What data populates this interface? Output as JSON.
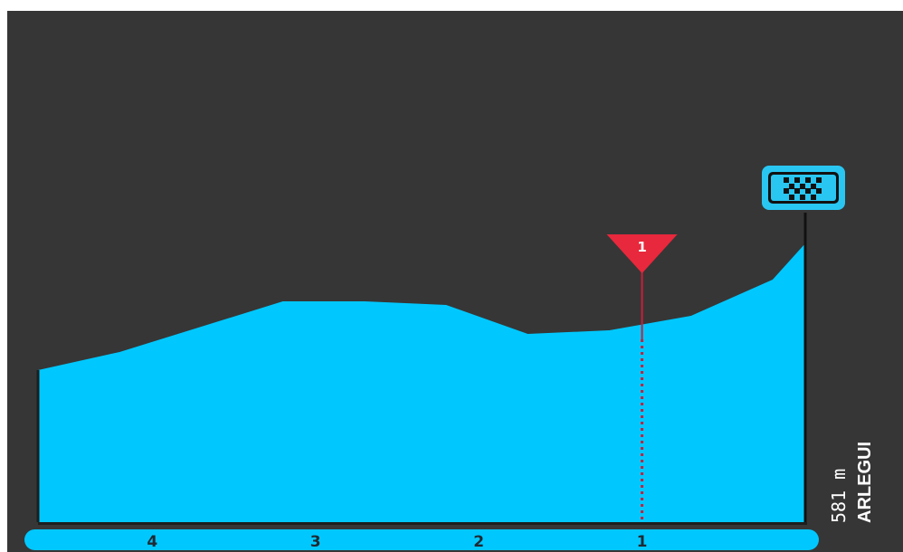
{
  "chart_data": {
    "type": "area",
    "x": [
      4.7,
      4.2,
      3.7,
      3.2,
      2.7,
      2.2,
      1.7,
      1.2,
      0.7,
      0.2,
      0
    ],
    "y": [
      542,
      547,
      554,
      561,
      561,
      560,
      552,
      553,
      557,
      567,
      577
    ],
    "xlim": [
      4.7,
      0
    ],
    "ylim": [
      500,
      600
    ],
    "tick_labels": [
      "4",
      "3",
      "2",
      "1"
    ],
    "tick_values": [
      4,
      3,
      2,
      1
    ],
    "area_color": "#00c8ff",
    "background_color": "#363636",
    "marker": {
      "label": "1",
      "x": 1,
      "color": "#e8283c"
    },
    "finish": {
      "icon": "checkered-flag-icon",
      "color": "#29c6f2"
    },
    "altitude_label": "581 m",
    "place_label": "ARLEGUI"
  }
}
